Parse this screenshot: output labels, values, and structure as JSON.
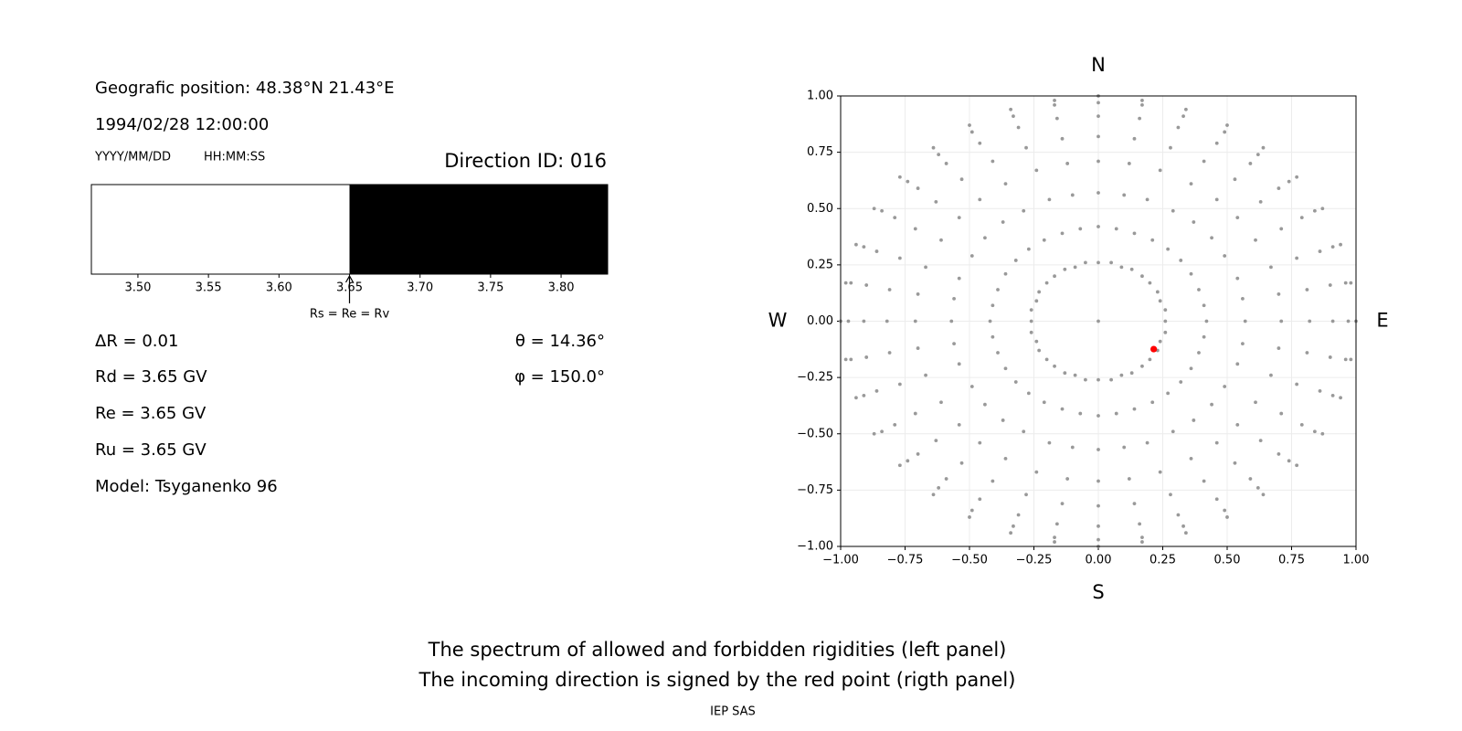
{
  "info": {
    "position": "Geografic position: 48.38°N 21.43°E",
    "datetime": "1994/02/28 12:00:00",
    "date_format": "YYYY/MM/DD",
    "time_format": "HH:MM:SS",
    "direction": "Direction ID: 016",
    "delta_r": "ΔR = 0.01",
    "rd": "Rd = 3.65 GV",
    "re": "Re = 3.65 GV",
    "ru": "Ru = 3.65 GV",
    "model": "Model: Tsyganenko 96",
    "theta": "θ = 14.36°",
    "phi": "φ = 150.0°"
  },
  "caption": {
    "line1": "The spectrum of allowed and forbidden rigidities (left panel)",
    "line2": "The incoming direction is signed by the red point (rigth panel)",
    "credit": "IEP SAS"
  },
  "chart_data": [
    {
      "type": "spectrum",
      "xlim": [
        3.467,
        3.833
      ],
      "xticks": [
        {
          "value": 3.5,
          "label": "3.50"
        },
        3.55,
        {
          "value": 3.6,
          "label": "3.60"
        },
        3.65,
        {
          "value": 3.7,
          "label": "3.70"
        },
        3.75,
        {
          "value": 3.8,
          "label": "3.80"
        }
      ],
      "segments": [
        {
          "color": "#ffffff",
          "x": [
            3.467,
            3.65
          ]
        },
        {
          "color": "#000000",
          "x": [
            3.65,
            3.833
          ]
        }
      ],
      "annotation": {
        "text": "Rs = Re = Rv",
        "x": 3.65
      }
    },
    {
      "type": "scatter",
      "xlim": [
        -1,
        1
      ],
      "ylim": [
        -1,
        1
      ],
      "grid": true,
      "xticks": [
        {
          "value": -1,
          "label": "−1.00"
        },
        {
          "value": -0.75,
          "label": "−0.75"
        },
        {
          "value": -0.5,
          "label": "−0.50"
        },
        {
          "value": -0.25,
          "label": "−0.25"
        },
        {
          "value": 0,
          "label": "0.00"
        },
        {
          "value": 0.25,
          "label": "0.25"
        },
        {
          "value": 0.5,
          "label": "0.50"
        },
        {
          "value": 0.75,
          "label": "0.75"
        },
        {
          "value": 1,
          "label": "1.00"
        }
      ],
      "yticks": [
        {
          "value": -1,
          "label": "−1.00"
        },
        {
          "value": -0.75,
          "label": "−0.75"
        },
        {
          "value": -0.5,
          "label": "−0.50"
        },
        {
          "value": -0.25,
          "label": "−0.25"
        },
        {
          "value": 0,
          "label": "0.00"
        },
        {
          "value": 0.25,
          "label": "0.25"
        },
        {
          "value": 0.5,
          "label": "0.50"
        },
        {
          "value": 0.75,
          "label": "0.75"
        },
        {
          "value": 1,
          "label": "1.00"
        }
      ],
      "directions": {
        "north": "N",
        "south": "S",
        "west": "W",
        "east": "E"
      },
      "series": [
        {
          "color": "#999999",
          "x": [
            0
          ],
          "y": [
            0
          ]
        },
        {
          "color": "#999999",
          "x": [
            0.26,
            0.26,
            0.24,
            0.23,
            0.2,
            0.17,
            0.13,
            0.09,
            0.05,
            0,
            -0.05,
            -0.09,
            -0.13,
            -0.17,
            -0.2,
            -0.23,
            -0.24,
            -0.26,
            -0.26,
            -0.26,
            -0.24,
            -0.23,
            -0.2,
            -0.17,
            -0.13,
            -0.09,
            -0.05,
            0,
            0.05,
            0.09,
            0.13,
            0.17,
            0.2,
            0.23,
            0.24,
            0.26
          ],
          "y": [
            0,
            0.05,
            0.09,
            0.13,
            0.17,
            0.2,
            0.23,
            0.24,
            0.26,
            0.26,
            0.26,
            0.24,
            0.23,
            0.2,
            0.17,
            0.13,
            0.09,
            0.05,
            0,
            -0.05,
            -0.09,
            -0.13,
            -0.17,
            -0.2,
            -0.23,
            -0.24,
            -0.26,
            -0.26,
            -0.26,
            -0.24,
            -0.23,
            -0.2,
            -0.17,
            -0.13,
            -0.09,
            -0.05
          ]
        },
        {
          "color": "#999999",
          "x": [
            0.42,
            0.41,
            0.39,
            0.36,
            0.32,
            0.27,
            0.21,
            0.14,
            0.07,
            0,
            -0.07,
            -0.14,
            -0.21,
            -0.27,
            -0.32,
            -0.36,
            -0.39,
            -0.41,
            -0.42,
            -0.41,
            -0.39,
            -0.36,
            -0.32,
            -0.27,
            -0.21,
            -0.14,
            -0.07,
            0,
            0.07,
            0.14,
            0.21,
            0.27,
            0.32,
            0.36,
            0.39,
            0.41
          ],
          "y": [
            0,
            0.07,
            0.14,
            0.21,
            0.27,
            0.32,
            0.36,
            0.39,
            0.41,
            0.42,
            0.41,
            0.39,
            0.36,
            0.32,
            0.27,
            0.21,
            0.14,
            0.07,
            0,
            -0.07,
            -0.14,
            -0.21,
            -0.27,
            -0.32,
            -0.36,
            -0.39,
            -0.41,
            -0.42,
            -0.41,
            -0.39,
            -0.36,
            -0.32,
            -0.27,
            -0.21,
            -0.14,
            -0.07
          ]
        },
        {
          "color": "#999999",
          "x": [
            0.57,
            0.56,
            0.54,
            0.49,
            0.44,
            0.37,
            0.29,
            0.19,
            0.1,
            0,
            -0.1,
            -0.19,
            -0.29,
            -0.37,
            -0.44,
            -0.49,
            -0.54,
            -0.56,
            -0.57,
            -0.56,
            -0.54,
            -0.49,
            -0.44,
            -0.37,
            -0.29,
            -0.19,
            -0.1,
            0,
            0.1,
            0.19,
            0.29,
            0.37,
            0.44,
            0.49,
            0.54,
            0.56
          ],
          "y": [
            0,
            0.1,
            0.19,
            0.29,
            0.37,
            0.44,
            0.49,
            0.54,
            0.56,
            0.57,
            0.56,
            0.54,
            0.49,
            0.44,
            0.37,
            0.29,
            0.19,
            0.1,
            0,
            -0.1,
            -0.19,
            -0.29,
            -0.37,
            -0.44,
            -0.49,
            -0.54,
            -0.56,
            -0.57,
            -0.56,
            -0.54,
            -0.49,
            -0.44,
            -0.37,
            -0.29,
            -0.19,
            -0.1
          ]
        },
        {
          "color": "#999999",
          "x": [
            0.71,
            0.7,
            0.67,
            0.61,
            0.54,
            0.46,
            0.36,
            0.24,
            0.12,
            0,
            -0.12,
            -0.24,
            -0.36,
            -0.46,
            -0.54,
            -0.61,
            -0.67,
            -0.7,
            -0.71,
            -0.7,
            -0.67,
            -0.61,
            -0.54,
            -0.46,
            -0.36,
            -0.24,
            -0.12,
            0,
            0.12,
            0.24,
            0.36,
            0.46,
            0.54,
            0.61,
            0.67,
            0.7
          ],
          "y": [
            0,
            0.12,
            0.24,
            0.36,
            0.46,
            0.54,
            0.61,
            0.67,
            0.7,
            0.71,
            0.7,
            0.67,
            0.61,
            0.54,
            0.46,
            0.36,
            0.24,
            0.12,
            0,
            -0.12,
            -0.24,
            -0.36,
            -0.46,
            -0.54,
            -0.61,
            -0.67,
            -0.7,
            -0.71,
            -0.7,
            -0.67,
            -0.61,
            -0.54,
            -0.46,
            -0.36,
            -0.24,
            -0.12
          ]
        },
        {
          "color": "#999999",
          "x": [
            0.82,
            0.81,
            0.77,
            0.71,
            0.63,
            0.53,
            0.41,
            0.28,
            0.14,
            0,
            -0.14,
            -0.28,
            -0.41,
            -0.53,
            -0.63,
            -0.71,
            -0.77,
            -0.81,
            -0.82,
            -0.81,
            -0.77,
            -0.71,
            -0.63,
            -0.53,
            -0.41,
            -0.28,
            -0.14,
            0,
            0.14,
            0.28,
            0.41,
            0.53,
            0.63,
            0.71,
            0.77,
            0.81
          ],
          "y": [
            0,
            0.14,
            0.28,
            0.41,
            0.53,
            0.63,
            0.71,
            0.77,
            0.81,
            0.82,
            0.81,
            0.77,
            0.71,
            0.63,
            0.53,
            0.41,
            0.28,
            0.14,
            0,
            -0.14,
            -0.28,
            -0.41,
            -0.53,
            -0.63,
            -0.71,
            -0.77,
            -0.81,
            -0.82,
            -0.81,
            -0.77,
            -0.71,
            -0.63,
            -0.53,
            -0.41,
            -0.28,
            -0.14
          ]
        },
        {
          "color": "#999999",
          "x": [
            0.91,
            0.9,
            0.86,
            0.79,
            0.7,
            0.59,
            0.46,
            0.31,
            0.16,
            0,
            -0.16,
            -0.31,
            -0.46,
            -0.59,
            -0.7,
            -0.79,
            -0.86,
            -0.9,
            -0.91,
            -0.9,
            -0.86,
            -0.79,
            -0.7,
            -0.59,
            -0.46,
            -0.31,
            -0.16,
            0,
            0.16,
            0.31,
            0.46,
            0.59,
            0.7,
            0.79,
            0.86,
            0.9
          ],
          "y": [
            0,
            0.16,
            0.31,
            0.46,
            0.59,
            0.7,
            0.79,
            0.86,
            0.9,
            0.91,
            0.9,
            0.86,
            0.79,
            0.7,
            0.59,
            0.46,
            0.31,
            0.16,
            0,
            -0.16,
            -0.31,
            -0.46,
            -0.59,
            -0.7,
            -0.79,
            -0.86,
            -0.9,
            -0.91,
            -0.9,
            -0.86,
            -0.79,
            -0.7,
            -0.59,
            -0.46,
            -0.31,
            -0.16
          ]
        },
        {
          "color": "#999999",
          "x": [
            0.97,
            0.96,
            0.91,
            0.84,
            0.74,
            0.62,
            0.49,
            0.33,
            0.17,
            0,
            -0.17,
            -0.33,
            -0.49,
            -0.62,
            -0.74,
            -0.84,
            -0.91,
            -0.96,
            -0.97,
            -0.96,
            -0.91,
            -0.84,
            -0.74,
            -0.62,
            -0.49,
            -0.33,
            -0.17,
            0,
            0.17,
            0.33,
            0.49,
            0.62,
            0.74,
            0.84,
            0.91,
            0.96
          ],
          "y": [
            0,
            0.17,
            0.33,
            0.49,
            0.62,
            0.74,
            0.84,
            0.91,
            0.96,
            0.97,
            0.96,
            0.91,
            0.84,
            0.74,
            0.62,
            0.49,
            0.33,
            0.17,
            0,
            -0.17,
            -0.33,
            -0.49,
            -0.62,
            -0.74,
            -0.84,
            -0.91,
            -0.96,
            -0.97,
            -0.96,
            -0.91,
            -0.84,
            -0.74,
            -0.62,
            -0.49,
            -0.33,
            -0.17
          ]
        },
        {
          "color": "#999999",
          "x": [
            1,
            0.98,
            0.94,
            0.87,
            0.77,
            0.64,
            0.5,
            0.34,
            0.17,
            0,
            -0.17,
            -0.34,
            -0.5,
            -0.64,
            -0.77,
            -0.87,
            -0.94,
            -0.98,
            -1,
            -0.98,
            -0.94,
            -0.87,
            -0.77,
            -0.64,
            -0.5,
            -0.34,
            -0.17,
            0,
            0.17,
            0.34,
            0.5,
            0.64,
            0.77,
            0.87,
            0.94,
            0.98
          ],
          "y": [
            0,
            0.17,
            0.34,
            0.5,
            0.64,
            0.77,
            0.87,
            0.94,
            0.98,
            1,
            0.98,
            0.94,
            0.87,
            0.77,
            0.64,
            0.5,
            0.34,
            0.17,
            0,
            -0.17,
            -0.34,
            -0.5,
            -0.64,
            -0.77,
            -0.87,
            -0.94,
            -0.98,
            -1,
            -0.98,
            -0.94,
            -0.87,
            -0.77,
            -0.64,
            -0.5,
            -0.34,
            -0.17
          ]
        },
        {
          "color": "#ff0000",
          "highlight": true,
          "x": [
            0.215
          ],
          "y": [
            -0.124
          ]
        }
      ]
    }
  ]
}
